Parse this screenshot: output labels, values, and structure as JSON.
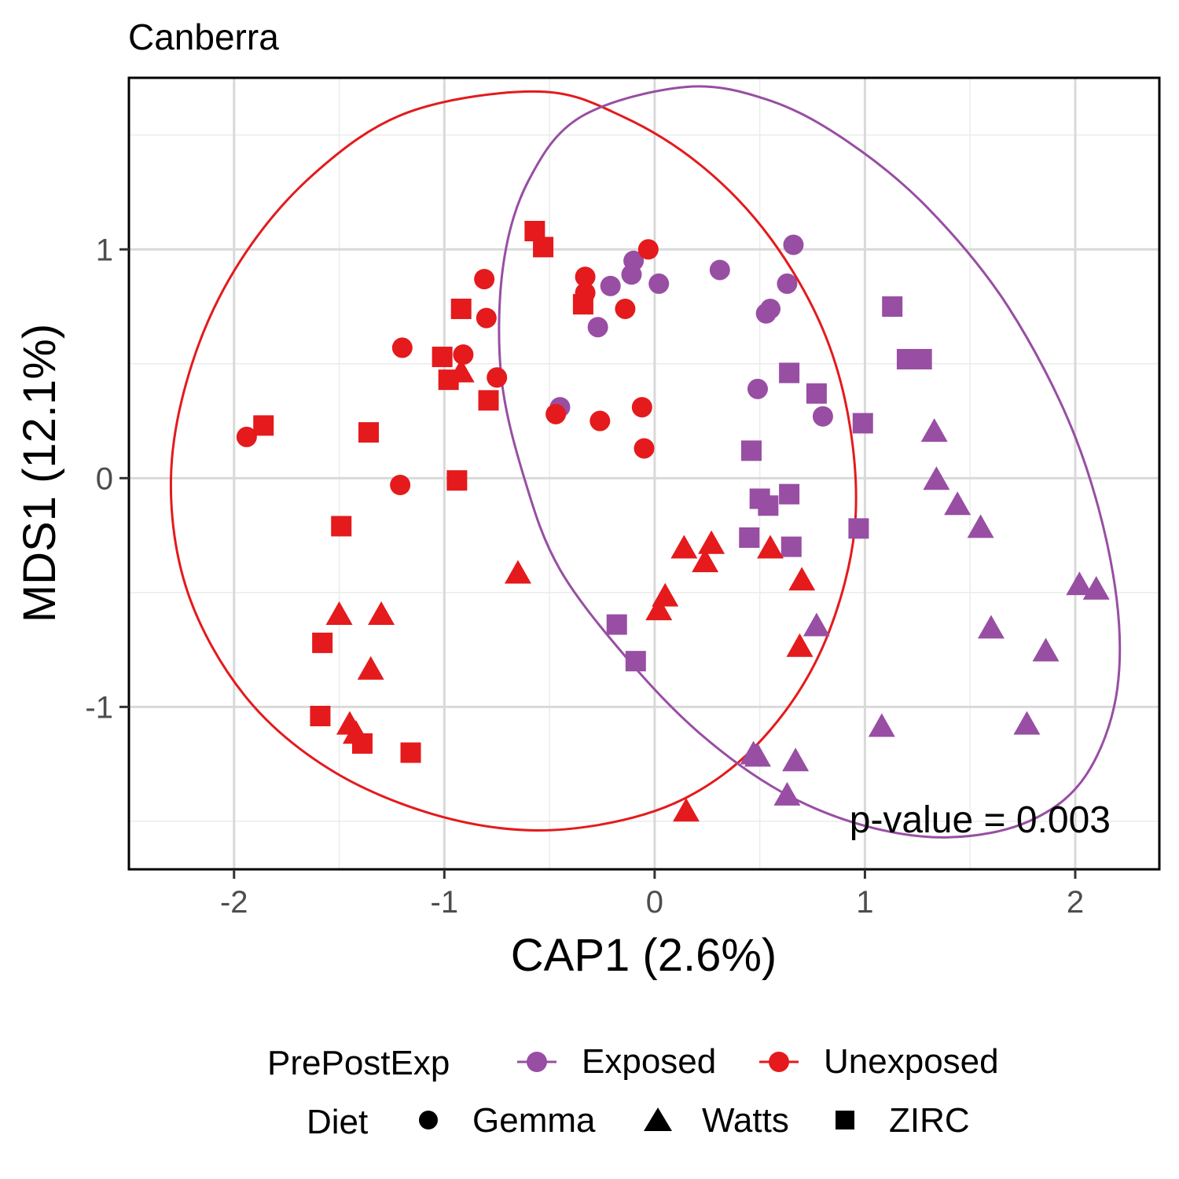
{
  "chart_data": {
    "type": "scatter",
    "title": "Canberra",
    "xlabel": "CAP1 (2.6%)",
    "ylabel": "MDS1 (12.1%)",
    "xlim": [
      -2.5,
      2.4
    ],
    "ylim": [
      -1.71,
      1.75
    ],
    "x_ticks": [
      -2,
      -1,
      0,
      1,
      2
    ],
    "x_tick_labels": [
      "-2",
      "-1",
      "0",
      "1",
      "2"
    ],
    "y_ticks": [
      -1,
      0,
      1
    ],
    "y_tick_labels": [
      "-1",
      "0",
      "1"
    ],
    "grid": true,
    "legend_position": "bottom",
    "annotation": "p-value = 0.003",
    "legend": {
      "color_title": "PrePostExp",
      "shape_title": "Diet",
      "groups": [
        {
          "name": "Exposed",
          "color": "#984EA3"
        },
        {
          "name": "Unexposed",
          "color": "#E41A1C"
        }
      ],
      "shapes": [
        {
          "name": "Gemma",
          "shape": "circle"
        },
        {
          "name": "Watts",
          "shape": "triangle"
        },
        {
          "name": "ZIRC",
          "shape": "square"
        }
      ]
    },
    "series": [
      {
        "name": "Exposed",
        "color": "#984EA3",
        "points": [
          {
            "diet": "Gemma",
            "x": -0.1,
            "y": 0.95
          },
          {
            "diet": "Gemma",
            "x": -0.11,
            "y": 0.89
          },
          {
            "diet": "Gemma",
            "x": -0.21,
            "y": 0.84
          },
          {
            "diet": "Gemma",
            "x": 0.02,
            "y": 0.85
          },
          {
            "diet": "Gemma",
            "x": -0.27,
            "y": 0.66
          },
          {
            "diet": "Gemma",
            "x": 0.31,
            "y": 0.91
          },
          {
            "diet": "Gemma",
            "x": 0.66,
            "y": 1.02
          },
          {
            "diet": "Gemma",
            "x": 0.63,
            "y": 0.85
          },
          {
            "diet": "Gemma",
            "x": 0.55,
            "y": 0.74
          },
          {
            "diet": "Gemma",
            "x": 0.53,
            "y": 0.72
          },
          {
            "diet": "Gemma",
            "x": 0.49,
            "y": 0.39
          },
          {
            "diet": "Gemma",
            "x": 0.8,
            "y": 0.27
          },
          {
            "diet": "Gemma",
            "x": -0.45,
            "y": 0.31
          },
          {
            "diet": "ZIRC",
            "x": 1.13,
            "y": 0.75
          },
          {
            "diet": "ZIRC",
            "x": 1.2,
            "y": 0.52
          },
          {
            "diet": "ZIRC",
            "x": 1.27,
            "y": 0.52
          },
          {
            "diet": "ZIRC",
            "x": 0.64,
            "y": 0.46
          },
          {
            "diet": "ZIRC",
            "x": 0.77,
            "y": 0.37
          },
          {
            "diet": "ZIRC",
            "x": 0.99,
            "y": 0.24
          },
          {
            "diet": "ZIRC",
            "x": 0.46,
            "y": 0.12
          },
          {
            "diet": "ZIRC",
            "x": 0.5,
            "y": -0.09
          },
          {
            "diet": "ZIRC",
            "x": 0.54,
            "y": -0.12
          },
          {
            "diet": "ZIRC",
            "x": 0.64,
            "y": -0.07
          },
          {
            "diet": "ZIRC",
            "x": 0.45,
            "y": -0.26
          },
          {
            "diet": "ZIRC",
            "x": 0.65,
            "y": -0.3
          },
          {
            "diet": "ZIRC",
            "x": 0.97,
            "y": -0.22
          },
          {
            "diet": "ZIRC",
            "x": -0.18,
            "y": -0.64
          },
          {
            "diet": "ZIRC",
            "x": -0.09,
            "y": -0.8
          },
          {
            "diet": "Watts",
            "x": 1.33,
            "y": 0.2
          },
          {
            "diet": "Watts",
            "x": 1.34,
            "y": -0.01
          },
          {
            "diet": "Watts",
            "x": 1.44,
            "y": -0.12
          },
          {
            "diet": "Watts",
            "x": 1.55,
            "y": -0.22
          },
          {
            "diet": "Watts",
            "x": 2.02,
            "y": -0.47
          },
          {
            "diet": "Watts",
            "x": 2.1,
            "y": -0.49
          },
          {
            "diet": "Watts",
            "x": 0.77,
            "y": -0.65
          },
          {
            "diet": "Watts",
            "x": 1.6,
            "y": -0.66
          },
          {
            "diet": "Watts",
            "x": 1.86,
            "y": -0.76
          },
          {
            "diet": "Watts",
            "x": 1.08,
            "y": -1.09
          },
          {
            "diet": "Watts",
            "x": 1.77,
            "y": -1.08
          },
          {
            "diet": "Watts",
            "x": 0.47,
            "y": -1.21
          },
          {
            "diet": "Watts",
            "x": 0.49,
            "y": -1.22
          },
          {
            "diet": "Watts",
            "x": 0.67,
            "y": -1.24
          },
          {
            "diet": "Watts",
            "x": 0.63,
            "y": -1.39
          }
        ]
      },
      {
        "name": "Unexposed",
        "color": "#E41A1C",
        "points": [
          {
            "diet": "Gemma",
            "x": -0.03,
            "y": 1.0
          },
          {
            "diet": "Gemma",
            "x": -0.33,
            "y": 0.88
          },
          {
            "diet": "Gemma",
            "x": -0.33,
            "y": 0.81
          },
          {
            "diet": "Gemma",
            "x": -0.14,
            "y": 0.74
          },
          {
            "diet": "Gemma",
            "x": -0.81,
            "y": 0.87
          },
          {
            "diet": "Gemma",
            "x": -0.8,
            "y": 0.7
          },
          {
            "diet": "Gemma",
            "x": -1.2,
            "y": 0.57
          },
          {
            "diet": "Gemma",
            "x": -0.91,
            "y": 0.54
          },
          {
            "diet": "Gemma",
            "x": -0.75,
            "y": 0.44
          },
          {
            "diet": "Gemma",
            "x": -0.47,
            "y": 0.28
          },
          {
            "diet": "Gemma",
            "x": -0.26,
            "y": 0.25
          },
          {
            "diet": "Gemma",
            "x": -0.06,
            "y": 0.31
          },
          {
            "diet": "Gemma",
            "x": -0.05,
            "y": 0.13
          },
          {
            "diet": "Gemma",
            "x": -1.94,
            "y": 0.18
          },
          {
            "diet": "Gemma",
            "x": -1.21,
            "y": -0.03
          },
          {
            "diet": "ZIRC",
            "x": -0.57,
            "y": 1.08
          },
          {
            "diet": "ZIRC",
            "x": -0.53,
            "y": 1.01
          },
          {
            "diet": "ZIRC",
            "x": -0.92,
            "y": 0.74
          },
          {
            "diet": "ZIRC",
            "x": -0.34,
            "y": 0.76
          },
          {
            "diet": "ZIRC",
            "x": -1.01,
            "y": 0.53
          },
          {
            "diet": "ZIRC",
            "x": -0.98,
            "y": 0.43
          },
          {
            "diet": "ZIRC",
            "x": -0.79,
            "y": 0.34
          },
          {
            "diet": "ZIRC",
            "x": -1.86,
            "y": 0.23
          },
          {
            "diet": "ZIRC",
            "x": -1.36,
            "y": 0.2
          },
          {
            "diet": "ZIRC",
            "x": -0.94,
            "y": -0.01
          },
          {
            "diet": "ZIRC",
            "x": -1.49,
            "y": -0.21
          },
          {
            "diet": "ZIRC",
            "x": -1.58,
            "y": -0.72
          },
          {
            "diet": "ZIRC",
            "x": -1.59,
            "y": -1.04
          },
          {
            "diet": "ZIRC",
            "x": -1.39,
            "y": -1.16
          },
          {
            "diet": "ZIRC",
            "x": -1.16,
            "y": -1.2
          },
          {
            "diet": "Watts",
            "x": -0.92,
            "y": 0.46
          },
          {
            "diet": "Watts",
            "x": -0.65,
            "y": -0.42
          },
          {
            "diet": "Watts",
            "x": -1.5,
            "y": -0.6
          },
          {
            "diet": "Watts",
            "x": -1.3,
            "y": -0.6
          },
          {
            "diet": "Watts",
            "x": -1.35,
            "y": -0.84
          },
          {
            "diet": "Watts",
            "x": -1.45,
            "y": -1.08
          },
          {
            "diet": "Watts",
            "x": -1.42,
            "y": -1.12
          },
          {
            "diet": "Watts",
            "x": 0.14,
            "y": -0.31
          },
          {
            "diet": "Watts",
            "x": 0.27,
            "y": -0.29
          },
          {
            "diet": "Watts",
            "x": 0.24,
            "y": -0.37
          },
          {
            "diet": "Watts",
            "x": 0.55,
            "y": -0.31
          },
          {
            "diet": "Watts",
            "x": 0.7,
            "y": -0.45
          },
          {
            "diet": "Watts",
            "x": 0.05,
            "y": -0.52
          },
          {
            "diet": "Watts",
            "x": 0.02,
            "y": -0.58
          },
          {
            "diet": "Watts",
            "x": 0.69,
            "y": -0.74
          },
          {
            "diet": "Watts",
            "x": 0.15,
            "y": -1.46
          }
        ]
      }
    ],
    "ellipses": [
      {
        "group": "Unexposed",
        "color": "#E41A1C",
        "path": [
          [
            -0.55,
            1.69
          ],
          [
            -0.15,
            1.58
          ],
          [
            0.23,
            1.36
          ],
          [
            0.55,
            1.05
          ],
          [
            0.8,
            0.65
          ],
          [
            0.93,
            0.22
          ],
          [
            0.95,
            -0.23
          ],
          [
            0.83,
            -0.67
          ],
          [
            0.62,
            -1.02
          ],
          [
            0.32,
            -1.3
          ],
          [
            -0.05,
            -1.47
          ],
          [
            -0.55,
            -1.54
          ],
          [
            -1.05,
            -1.47
          ],
          [
            -1.55,
            -1.27
          ],
          [
            -1.95,
            -0.95
          ],
          [
            -2.22,
            -0.5
          ],
          [
            -2.3,
            0.0
          ],
          [
            -2.2,
            0.5
          ],
          [
            -1.97,
            0.95
          ],
          [
            -1.62,
            1.33
          ],
          [
            -1.17,
            1.6
          ],
          [
            -0.55,
            1.69
          ]
        ]
      },
      {
        "group": "Exposed",
        "color": "#984EA3",
        "path": [
          [
            0.15,
            1.71
          ],
          [
            0.55,
            1.65
          ],
          [
            0.92,
            1.47
          ],
          [
            1.3,
            1.18
          ],
          [
            1.68,
            0.75
          ],
          [
            2.0,
            0.18
          ],
          [
            2.18,
            -0.42
          ],
          [
            2.2,
            -0.92
          ],
          [
            2.05,
            -1.3
          ],
          [
            1.78,
            -1.5
          ],
          [
            1.4,
            -1.57
          ],
          [
            1.0,
            -1.52
          ],
          [
            0.6,
            -1.37
          ],
          [
            0.22,
            -1.12
          ],
          [
            -0.12,
            -0.8
          ],
          [
            -0.45,
            -0.4
          ],
          [
            -0.62,
            0.0
          ],
          [
            -0.73,
            0.45
          ],
          [
            -0.72,
            0.93
          ],
          [
            -0.6,
            1.3
          ],
          [
            -0.35,
            1.58
          ],
          [
            0.15,
            1.71
          ]
        ]
      }
    ]
  }
}
